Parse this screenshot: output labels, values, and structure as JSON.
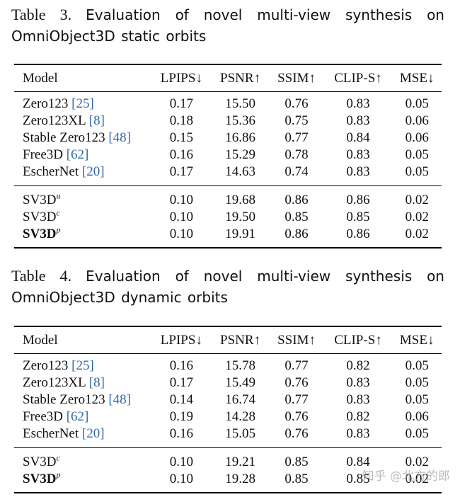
{
  "table3": {
    "caption_label": "Table 3.",
    "caption_text": "Evaluation of novel multi-view synthesis on OmniObject3D static orbits",
    "headers": [
      "Model",
      "LPIPS↓",
      "PSNR↑",
      "SSIM↑",
      "CLIP-S↑",
      "MSE↓"
    ],
    "rows": [
      {
        "name": "Zero123",
        "ref": "[25]",
        "sup": "",
        "name_bold": false,
        "values": [
          "0.17",
          "15.50",
          "0.76",
          "0.83",
          "0.05"
        ],
        "bold": [
          false,
          false,
          false,
          false,
          false
        ]
      },
      {
        "name": "Zero123XL",
        "ref": "[8]",
        "sup": "",
        "name_bold": false,
        "values": [
          "0.18",
          "15.36",
          "0.75",
          "0.83",
          "0.06"
        ],
        "bold": [
          false,
          false,
          false,
          false,
          false
        ]
      },
      {
        "name": "Stable Zero123",
        "ref": "[48]",
        "sup": "",
        "name_bold": false,
        "values": [
          "0.15",
          "16.86",
          "0.77",
          "0.84",
          "0.06"
        ],
        "bold": [
          false,
          false,
          false,
          false,
          false
        ]
      },
      {
        "name": "Free3D",
        "ref": "[62]",
        "sup": "",
        "name_bold": false,
        "values": [
          "0.16",
          "15.29",
          "0.78",
          "0.83",
          "0.05"
        ],
        "bold": [
          false,
          false,
          false,
          false,
          false
        ]
      },
      {
        "name": "EscherNet",
        "ref": "[20]",
        "sup": "",
        "name_bold": false,
        "values": [
          "0.17",
          "14.63",
          "0.74",
          "0.83",
          "0.05"
        ],
        "bold": [
          false,
          false,
          false,
          false,
          false
        ]
      },
      {
        "name": "SV3D",
        "ref": "",
        "sup": "u",
        "name_bold": false,
        "values": [
          "0.10",
          "19.68",
          "0.86",
          "0.86",
          "0.02"
        ],
        "bold": [
          true,
          false,
          true,
          true,
          true
        ]
      },
      {
        "name": "SV3D",
        "ref": "",
        "sup": "c",
        "name_bold": false,
        "values": [
          "0.10",
          "19.50",
          "0.85",
          "0.85",
          "0.02"
        ],
        "bold": [
          true,
          false,
          false,
          false,
          true
        ]
      },
      {
        "name": "SV3D",
        "ref": "",
        "sup": "p",
        "name_bold": true,
        "values": [
          "0.10",
          "19.91",
          "0.86",
          "0.86",
          "0.02"
        ],
        "bold": [
          true,
          true,
          true,
          true,
          true
        ]
      }
    ]
  },
  "table4": {
    "caption_label": "Table 4.",
    "caption_text": "Evaluation of novel multi-view synthesis on OmniObject3D dynamic orbits",
    "headers": [
      "Model",
      "LPIPS↓",
      "PSNR↑",
      "SSIM↑",
      "CLIP-S↑",
      "MSE↓"
    ],
    "rows": [
      {
        "name": "Zero123",
        "ref": "[25]",
        "sup": "",
        "name_bold": false,
        "values": [
          "0.16",
          "15.78",
          "0.77",
          "0.82",
          "0.05"
        ],
        "bold": [
          false,
          false,
          false,
          false,
          false
        ]
      },
      {
        "name": "Zero123XL",
        "ref": "[8]",
        "sup": "",
        "name_bold": false,
        "values": [
          "0.17",
          "15.49",
          "0.76",
          "0.83",
          "0.05"
        ],
        "bold": [
          false,
          false,
          false,
          false,
          false
        ]
      },
      {
        "name": "Stable Zero123",
        "ref": "[48]",
        "sup": "",
        "name_bold": false,
        "values": [
          "0.14",
          "16.74",
          "0.77",
          "0.83",
          "0.05"
        ],
        "bold": [
          false,
          false,
          false,
          false,
          false
        ]
      },
      {
        "name": "Free3D",
        "ref": "[62]",
        "sup": "",
        "name_bold": false,
        "values": [
          "0.19",
          "14.28",
          "0.76",
          "0.82",
          "0.06"
        ],
        "bold": [
          false,
          false,
          false,
          false,
          false
        ]
      },
      {
        "name": "EscherNet",
        "ref": "[20]",
        "sup": "",
        "name_bold": false,
        "values": [
          "0.16",
          "15.05",
          "0.76",
          "0.83",
          "0.05"
        ],
        "bold": [
          false,
          false,
          false,
          false,
          false
        ]
      },
      {
        "name": "SV3D",
        "ref": "",
        "sup": "c",
        "name_bold": false,
        "values": [
          "0.10",
          "19.21",
          "0.85",
          "0.84",
          "0.02"
        ],
        "bold": [
          true,
          false,
          true,
          false,
          true
        ]
      },
      {
        "name": "SV3D",
        "ref": "",
        "sup": "p",
        "name_bold": true,
        "values": [
          "0.10",
          "19.28",
          "0.85",
          "0.85",
          "0.02"
        ],
        "bold": [
          true,
          true,
          true,
          false,
          true
        ]
      }
    ]
  },
  "watermark": "知乎 @北方的郎",
  "colors": {
    "ref_link": "#2f6aa8",
    "text": "#111111",
    "watermark": "#969696"
  }
}
